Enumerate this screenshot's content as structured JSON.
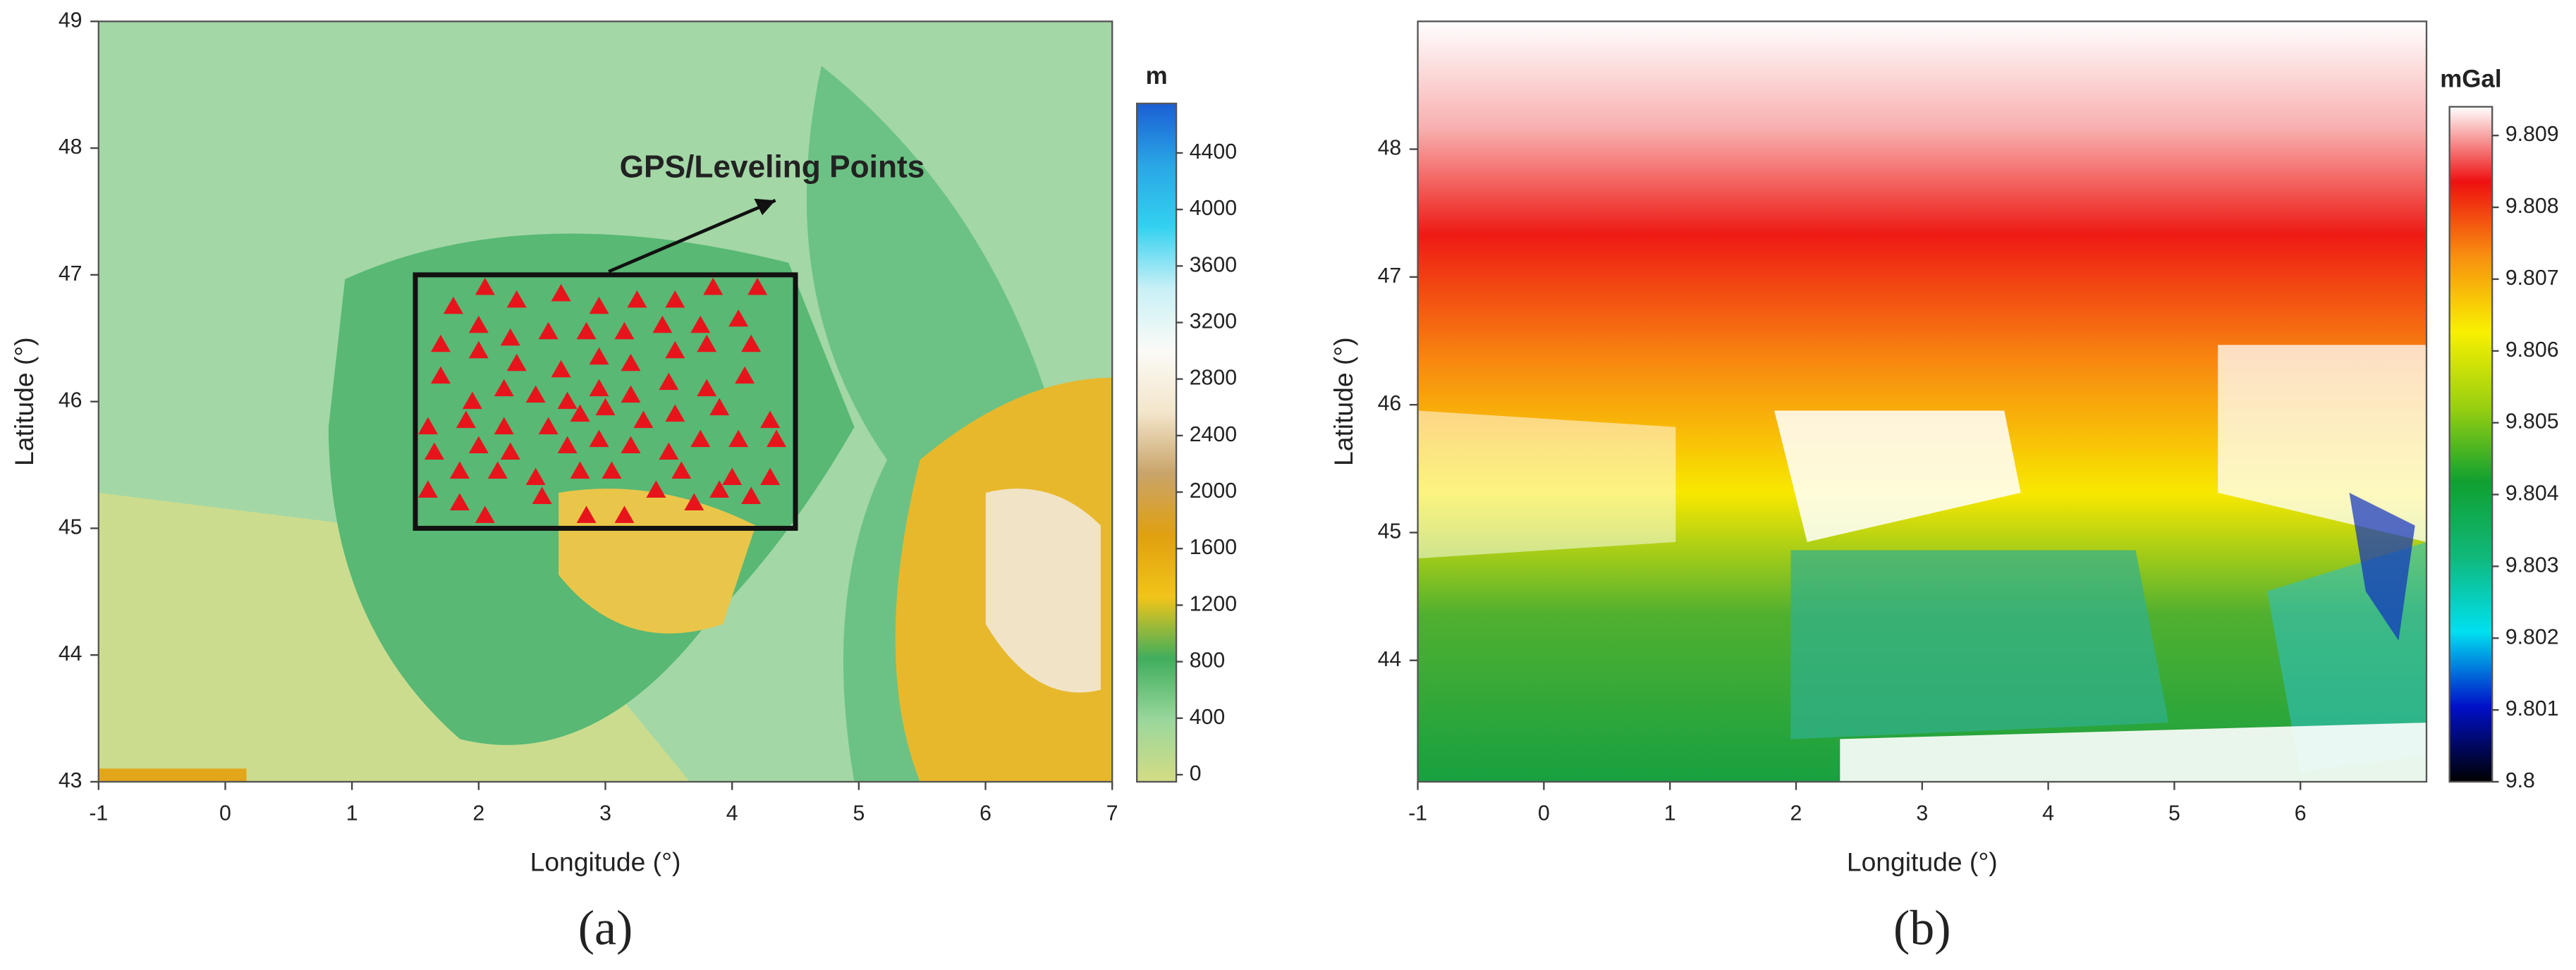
{
  "chart_data": [
    {
      "type": "scatter",
      "xlabel": "Longitude (°)",
      "ylabel": "Latitude (°)",
      "caption": "(a)",
      "annotation": "GPS/Leveling Points",
      "xlim": [
        -1,
        7
      ],
      "xticks": [
        -1,
        0,
        1,
        2,
        3,
        4,
        5,
        6,
        7
      ],
      "ylim": [
        43,
        49
      ],
      "yticks": [
        43,
        44,
        45,
        46,
        47,
        48,
        49
      ],
      "region_box": {
        "xlim": [
          1.5,
          4.5
        ],
        "ylim": [
          45,
          47
        ]
      },
      "color": "#e8141c",
      "x": [
        1.8,
        2.05,
        2.3,
        2.65,
        2.95,
        3.25,
        3.55,
        3.85,
        4.2,
        1.7,
        2.0,
        2.25,
        2.55,
        2.85,
        3.15,
        3.45,
        3.75,
        4.05,
        1.7,
        2.0,
        2.3,
        2.65,
        2.95,
        3.2,
        3.55,
        3.8,
        4.15,
        1.95,
        2.2,
        2.45,
        2.7,
        2.95,
        3.2,
        3.5,
        3.8,
        4.1,
        1.6,
        1.9,
        2.2,
        2.55,
        2.8,
        3.0,
        3.3,
        3.55,
        3.9,
        4.3,
        1.65,
        2.0,
        2.25,
        2.7,
        2.95,
        3.2,
        3.5,
        3.75,
        4.05,
        4.35,
        1.85,
        2.15,
        2.45,
        2.8,
        3.05,
        3.4,
        3.6,
        4.0,
        4.3,
        1.6,
        1.85,
        2.05,
        2.5,
        2.85,
        3.15,
        3.7,
        3.9,
        4.15
      ],
      "y": [
        46.75,
        46.9,
        46.8,
        46.85,
        46.75,
        46.8,
        46.8,
        46.9,
        46.9,
        46.45,
        46.6,
        46.5,
        46.55,
        46.55,
        46.55,
        46.6,
        46.6,
        46.65,
        46.2,
        46.4,
        46.3,
        46.25,
        46.35,
        46.3,
        46.4,
        46.45,
        46.45,
        46.0,
        46.1,
        46.05,
        46.0,
        46.1,
        46.05,
        46.15,
        46.1,
        46.2,
        45.8,
        45.85,
        45.8,
        45.8,
        45.9,
        45.95,
        45.85,
        45.9,
        45.95,
        45.85,
        45.6,
        45.65,
        45.6,
        45.65,
        45.7,
        45.65,
        45.6,
        45.7,
        45.7,
        45.7,
        45.45,
        45.45,
        45.4,
        45.45,
        45.45,
        45.3,
        45.45,
        45.4,
        45.4,
        45.3,
        45.2,
        45.1,
        45.25,
        45.1,
        45.1,
        45.2,
        45.3,
        45.25
      ],
      "colorbar": {
        "label": "m",
        "lim": [
          -50,
          4750
        ],
        "ticks": [
          0,
          400,
          800,
          1200,
          1600,
          2000,
          2400,
          2800,
          3200,
          3600,
          4000,
          4400
        ],
        "colors": [
          "#d4dc84",
          "#9ad79c",
          "#3fae5c",
          "#f2c418",
          "#e0a010",
          "#c9a46a",
          "#f3e6cb",
          "#fbfbf7",
          "#c8f0f6",
          "#33d1f0",
          "#2aa6e6",
          "#1a5fd4"
        ]
      }
    },
    {
      "type": "map",
      "xlabel": "Longitude (°)",
      "ylabel": "Latitude (°)",
      "caption": "(b)",
      "xlim": [
        -1,
        7
      ],
      "xticks": [
        -1,
        0,
        1,
        2,
        3,
        4,
        5,
        6
      ],
      "ylim": [
        43.05,
        49
      ],
      "yticks": [
        44,
        45,
        46,
        47,
        48
      ],
      "colorbar": {
        "label": "mGal",
        "lim": [
          9.8,
          9.8094
        ],
        "ticks": [
          9.8,
          9.801,
          9.802,
          9.803,
          9.804,
          9.805,
          9.806,
          9.807,
          9.808,
          9.809
        ],
        "colors": [
          "#000000",
          "#0010c8",
          "#00e0f0",
          "#10b87a",
          "#10a030",
          "#9ad010",
          "#f8f000",
          "#f89010",
          "#ee1010",
          "#ffffff"
        ]
      }
    }
  ]
}
